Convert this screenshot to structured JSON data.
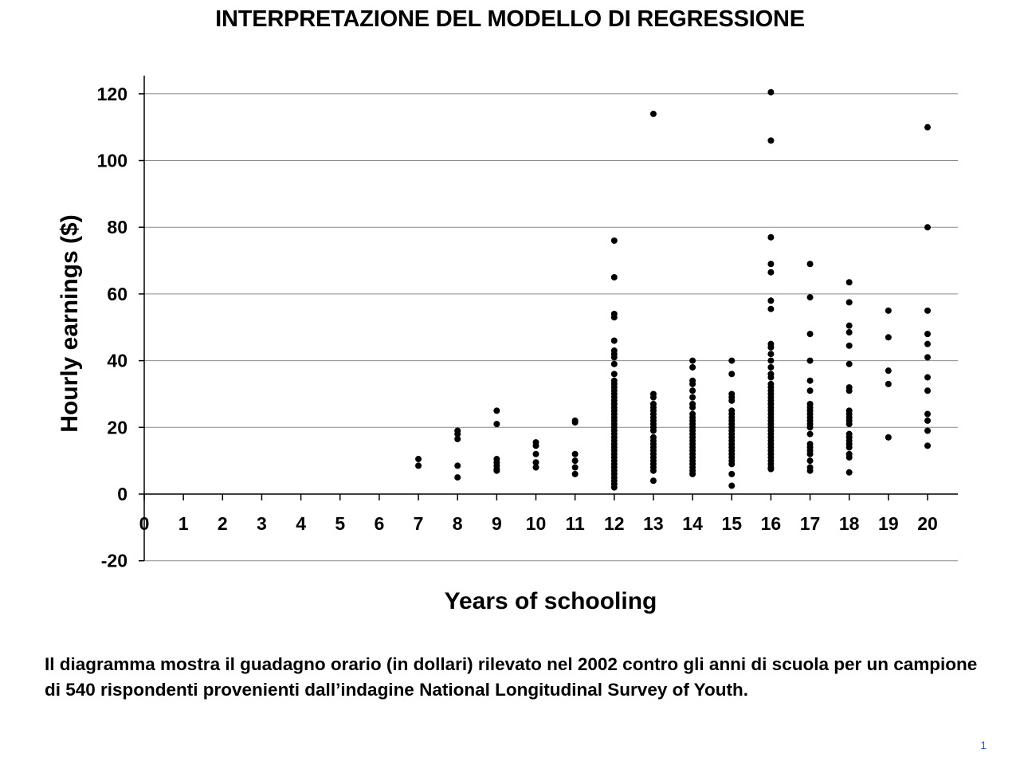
{
  "slide": {
    "title": "INTERPRETAZIONE DEL MODELLO DI REGRESSIONE",
    "caption": "Il diagramma mostra il guadagno orario (in dollari) rilevato nel 2002 contro gli anni di scuola per un campione di 540 rispondenti provenienti dall’indagine National Longitudinal Survey of Youth.",
    "page_number": "1"
  },
  "chart_data": {
    "type": "scatter",
    "title": "",
    "xlabel": "Years of schooling",
    "ylabel": "Hourly earnings ($)",
    "xlim": [
      0,
      20.8
    ],
    "ylim": [
      -20,
      125
    ],
    "x_ticks": [
      0,
      1,
      2,
      3,
      4,
      5,
      6,
      7,
      8,
      9,
      10,
      11,
      12,
      13,
      14,
      15,
      16,
      17,
      18,
      19,
      20
    ],
    "y_ticks": [
      -20,
      0,
      20,
      40,
      60,
      80,
      100,
      120
    ],
    "grid": "horizontal",
    "marker_color": "#000000",
    "series": [
      {
        "points": [
          [
            7,
            10.5
          ],
          [
            7,
            8.5
          ],
          [
            8,
            19
          ],
          [
            8,
            18
          ],
          [
            8,
            16.5
          ],
          [
            8,
            8.5
          ],
          [
            8,
            5
          ],
          [
            9,
            25
          ],
          [
            9,
            21
          ],
          [
            9,
            10.5
          ],
          [
            9,
            9.5
          ],
          [
            9,
            8.5
          ],
          [
            9,
            7.5
          ],
          [
            9,
            7
          ],
          [
            10,
            15.5
          ],
          [
            10,
            14.5
          ],
          [
            10,
            12
          ],
          [
            10,
            9.5
          ],
          [
            10,
            8
          ],
          [
            11,
            22
          ],
          [
            11,
            21.5
          ],
          [
            11,
            12
          ],
          [
            11,
            10
          ],
          [
            11,
            8
          ],
          [
            11,
            6
          ],
          [
            12,
            76
          ],
          [
            12,
            65
          ],
          [
            12,
            54
          ],
          [
            12,
            53
          ],
          [
            12,
            46
          ],
          [
            12,
            43
          ],
          [
            12,
            42
          ],
          [
            12,
            41
          ],
          [
            12,
            39
          ],
          [
            12,
            36
          ],
          [
            12,
            34
          ],
          [
            12,
            33
          ],
          [
            12,
            32
          ],
          [
            12,
            31
          ],
          [
            12,
            30
          ],
          [
            12,
            29
          ],
          [
            12,
            28
          ],
          [
            12,
            27
          ],
          [
            12,
            26
          ],
          [
            12,
            25
          ],
          [
            12,
            24
          ],
          [
            12,
            23
          ],
          [
            12,
            22
          ],
          [
            12,
            21
          ],
          [
            12,
            20
          ],
          [
            12,
            19
          ],
          [
            12,
            18
          ],
          [
            12,
            17
          ],
          [
            12,
            16
          ],
          [
            12,
            15
          ],
          [
            12,
            14
          ],
          [
            12,
            13
          ],
          [
            12,
            12
          ],
          [
            12,
            11
          ],
          [
            12,
            10
          ],
          [
            12,
            9
          ],
          [
            12,
            8
          ],
          [
            12,
            7
          ],
          [
            12,
            6
          ],
          [
            12,
            5
          ],
          [
            12,
            4
          ],
          [
            12,
            3
          ],
          [
            12,
            2
          ],
          [
            13,
            114
          ],
          [
            13,
            30
          ],
          [
            13,
            29
          ],
          [
            13,
            27
          ],
          [
            13,
            26
          ],
          [
            13,
            25
          ],
          [
            13,
            24
          ],
          [
            13,
            23
          ],
          [
            13,
            22
          ],
          [
            13,
            21
          ],
          [
            13,
            20
          ],
          [
            13,
            19
          ],
          [
            13,
            17
          ],
          [
            13,
            16
          ],
          [
            13,
            15
          ],
          [
            13,
            14
          ],
          [
            13,
            13
          ],
          [
            13,
            12
          ],
          [
            13,
            11
          ],
          [
            13,
            10
          ],
          [
            13,
            9
          ],
          [
            13,
            8
          ],
          [
            13,
            7
          ],
          [
            13,
            4
          ],
          [
            14,
            40
          ],
          [
            14,
            38
          ],
          [
            14,
            34
          ],
          [
            14,
            33
          ],
          [
            14,
            31
          ],
          [
            14,
            29
          ],
          [
            14,
            27
          ],
          [
            14,
            26
          ],
          [
            14,
            24
          ],
          [
            14,
            23
          ],
          [
            14,
            22
          ],
          [
            14,
            21
          ],
          [
            14,
            20
          ],
          [
            14,
            19
          ],
          [
            14,
            18
          ],
          [
            14,
            17
          ],
          [
            14,
            16
          ],
          [
            14,
            15
          ],
          [
            14,
            14
          ],
          [
            14,
            13
          ],
          [
            14,
            12
          ],
          [
            14,
            11
          ],
          [
            14,
            10
          ],
          [
            14,
            9
          ],
          [
            14,
            8
          ],
          [
            14,
            7
          ],
          [
            14,
            6
          ],
          [
            15,
            40
          ],
          [
            15,
            36
          ],
          [
            15,
            30
          ],
          [
            15,
            29
          ],
          [
            15,
            28
          ],
          [
            15,
            25
          ],
          [
            15,
            24
          ],
          [
            15,
            23
          ],
          [
            15,
            22
          ],
          [
            15,
            21
          ],
          [
            15,
            20
          ],
          [
            15,
            19
          ],
          [
            15,
            18
          ],
          [
            15,
            17
          ],
          [
            15,
            16
          ],
          [
            15,
            15
          ],
          [
            15,
            14
          ],
          [
            15,
            13
          ],
          [
            15,
            12
          ],
          [
            15,
            11
          ],
          [
            15,
            10
          ],
          [
            15,
            9
          ],
          [
            15,
            6
          ],
          [
            15,
            2.5
          ],
          [
            16,
            120.5
          ],
          [
            16,
            106
          ],
          [
            16,
            77
          ],
          [
            16,
            69
          ],
          [
            16,
            66.5
          ],
          [
            16,
            58
          ],
          [
            16,
            55.5
          ],
          [
            16,
            45
          ],
          [
            16,
            44
          ],
          [
            16,
            42
          ],
          [
            16,
            40
          ],
          [
            16,
            38
          ],
          [
            16,
            36
          ],
          [
            16,
            35
          ],
          [
            16,
            33
          ],
          [
            16,
            32
          ],
          [
            16,
            31
          ],
          [
            16,
            30
          ],
          [
            16,
            29
          ],
          [
            16,
            28
          ],
          [
            16,
            27
          ],
          [
            16,
            26
          ],
          [
            16,
            25
          ],
          [
            16,
            24
          ],
          [
            16,
            23
          ],
          [
            16,
            22
          ],
          [
            16,
            21
          ],
          [
            16,
            20
          ],
          [
            16,
            19
          ],
          [
            16,
            18
          ],
          [
            16,
            17
          ],
          [
            16,
            16
          ],
          [
            16,
            15
          ],
          [
            16,
            14
          ],
          [
            16,
            13
          ],
          [
            16,
            12
          ],
          [
            16,
            11
          ],
          [
            16,
            10
          ],
          [
            16,
            9
          ],
          [
            16,
            8
          ],
          [
            16,
            7.5
          ],
          [
            17,
            69
          ],
          [
            17,
            59
          ],
          [
            17,
            48
          ],
          [
            17,
            40
          ],
          [
            17,
            34
          ],
          [
            17,
            31
          ],
          [
            17,
            27
          ],
          [
            17,
            26
          ],
          [
            17,
            25
          ],
          [
            17,
            24
          ],
          [
            17,
            23
          ],
          [
            17,
            22
          ],
          [
            17,
            21
          ],
          [
            17,
            20
          ],
          [
            17,
            18
          ],
          [
            17,
            15
          ],
          [
            17,
            14
          ],
          [
            17,
            13
          ],
          [
            17,
            12
          ],
          [
            17,
            10
          ],
          [
            17,
            8
          ],
          [
            17,
            7
          ],
          [
            18,
            63.5
          ],
          [
            18,
            57.5
          ],
          [
            18,
            50.5
          ],
          [
            18,
            48.5
          ],
          [
            18,
            44.5
          ],
          [
            18,
            39
          ],
          [
            18,
            32
          ],
          [
            18,
            31
          ],
          [
            18,
            25
          ],
          [
            18,
            24
          ],
          [
            18,
            23
          ],
          [
            18,
            22
          ],
          [
            18,
            21
          ],
          [
            18,
            18
          ],
          [
            18,
            17
          ],
          [
            18,
            16
          ],
          [
            18,
            15
          ],
          [
            18,
            14
          ],
          [
            18,
            12
          ],
          [
            18,
            11
          ],
          [
            18,
            6.5
          ],
          [
            19,
            55
          ],
          [
            19,
            47
          ],
          [
            19,
            37
          ],
          [
            19,
            33
          ],
          [
            19,
            17
          ],
          [
            20,
            110
          ],
          [
            20,
            80
          ],
          [
            20,
            55
          ],
          [
            20,
            48
          ],
          [
            20,
            45
          ],
          [
            20,
            41
          ],
          [
            20,
            35
          ],
          [
            20,
            31
          ],
          [
            20,
            24
          ],
          [
            20,
            22
          ],
          [
            20,
            19
          ],
          [
            20,
            14.5
          ]
        ]
      }
    ]
  }
}
